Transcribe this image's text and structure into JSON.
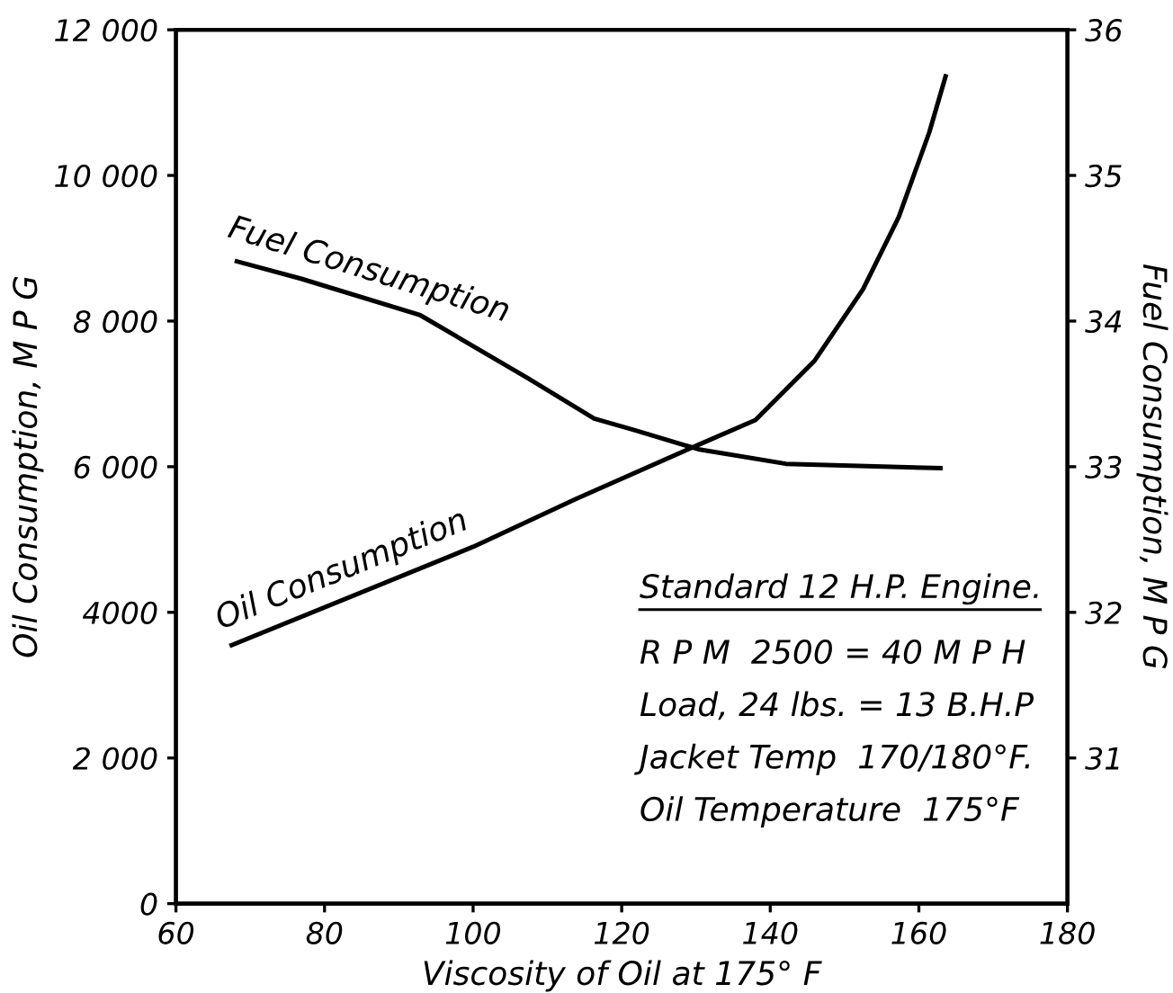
{
  "chart_data": {
    "type": "line",
    "xlabel": "Viscosity of Oil at 175° F",
    "ylabel": "Oil Consumption, M P G",
    "y2label": "Fuel Consumption, M P G",
    "xlim": [
      60,
      180
    ],
    "xticks": [
      60,
      80,
      100,
      120,
      140,
      160,
      180
    ],
    "ylim": [
      0,
      12000
    ],
    "yticks": [
      0,
      {
        "value": 2000,
        "label": "2 000"
      },
      4000,
      {
        "value": 6000,
        "label": "6 000"
      },
      {
        "value": 8000,
        "label": "8 000"
      },
      {
        "value": 10000,
        "label": "10 000"
      },
      {
        "value": 12000,
        "label": "12 000"
      }
    ],
    "y2lim": [
      30,
      36
    ],
    "y2ticks": [
      31,
      32,
      33,
      34,
      35,
      36
    ],
    "grid": false,
    "legend": false,
    "marker": "none",
    "line_style": "solid",
    "series": [
      {
        "name": "Fuel Consumption",
        "color": "#000000",
        "axis": "y2",
        "x": [
          68.2,
          76.9,
          92.9,
          107.3,
          116.3,
          121.8,
          130.3,
          142.1,
          162.9
        ],
        "values": [
          34.41,
          34.29,
          34.04,
          33.61,
          33.33,
          33.25,
          33.12,
          33.02,
          32.99
        ]
      },
      {
        "name": "Oil Consumption",
        "color": "#000000",
        "x": [
          67.5,
          100,
          113.9,
          130.3,
          138,
          146,
          152.5,
          157.3,
          161.4,
          163.6
        ],
        "values": [
          3550,
          4900,
          5560,
          6300,
          6640,
          7460,
          8440,
          9430,
          10590,
          11360
        ]
      }
    ],
    "annotations": [
      "Standard 12 H.P. Engine.",
      "R P M  2500 = 40 M P H",
      "Load, 24 lbs. = 13 B.H.P",
      "Jacket Temp  170/180°F.",
      "Oil Temperature  175°F"
    ]
  }
}
